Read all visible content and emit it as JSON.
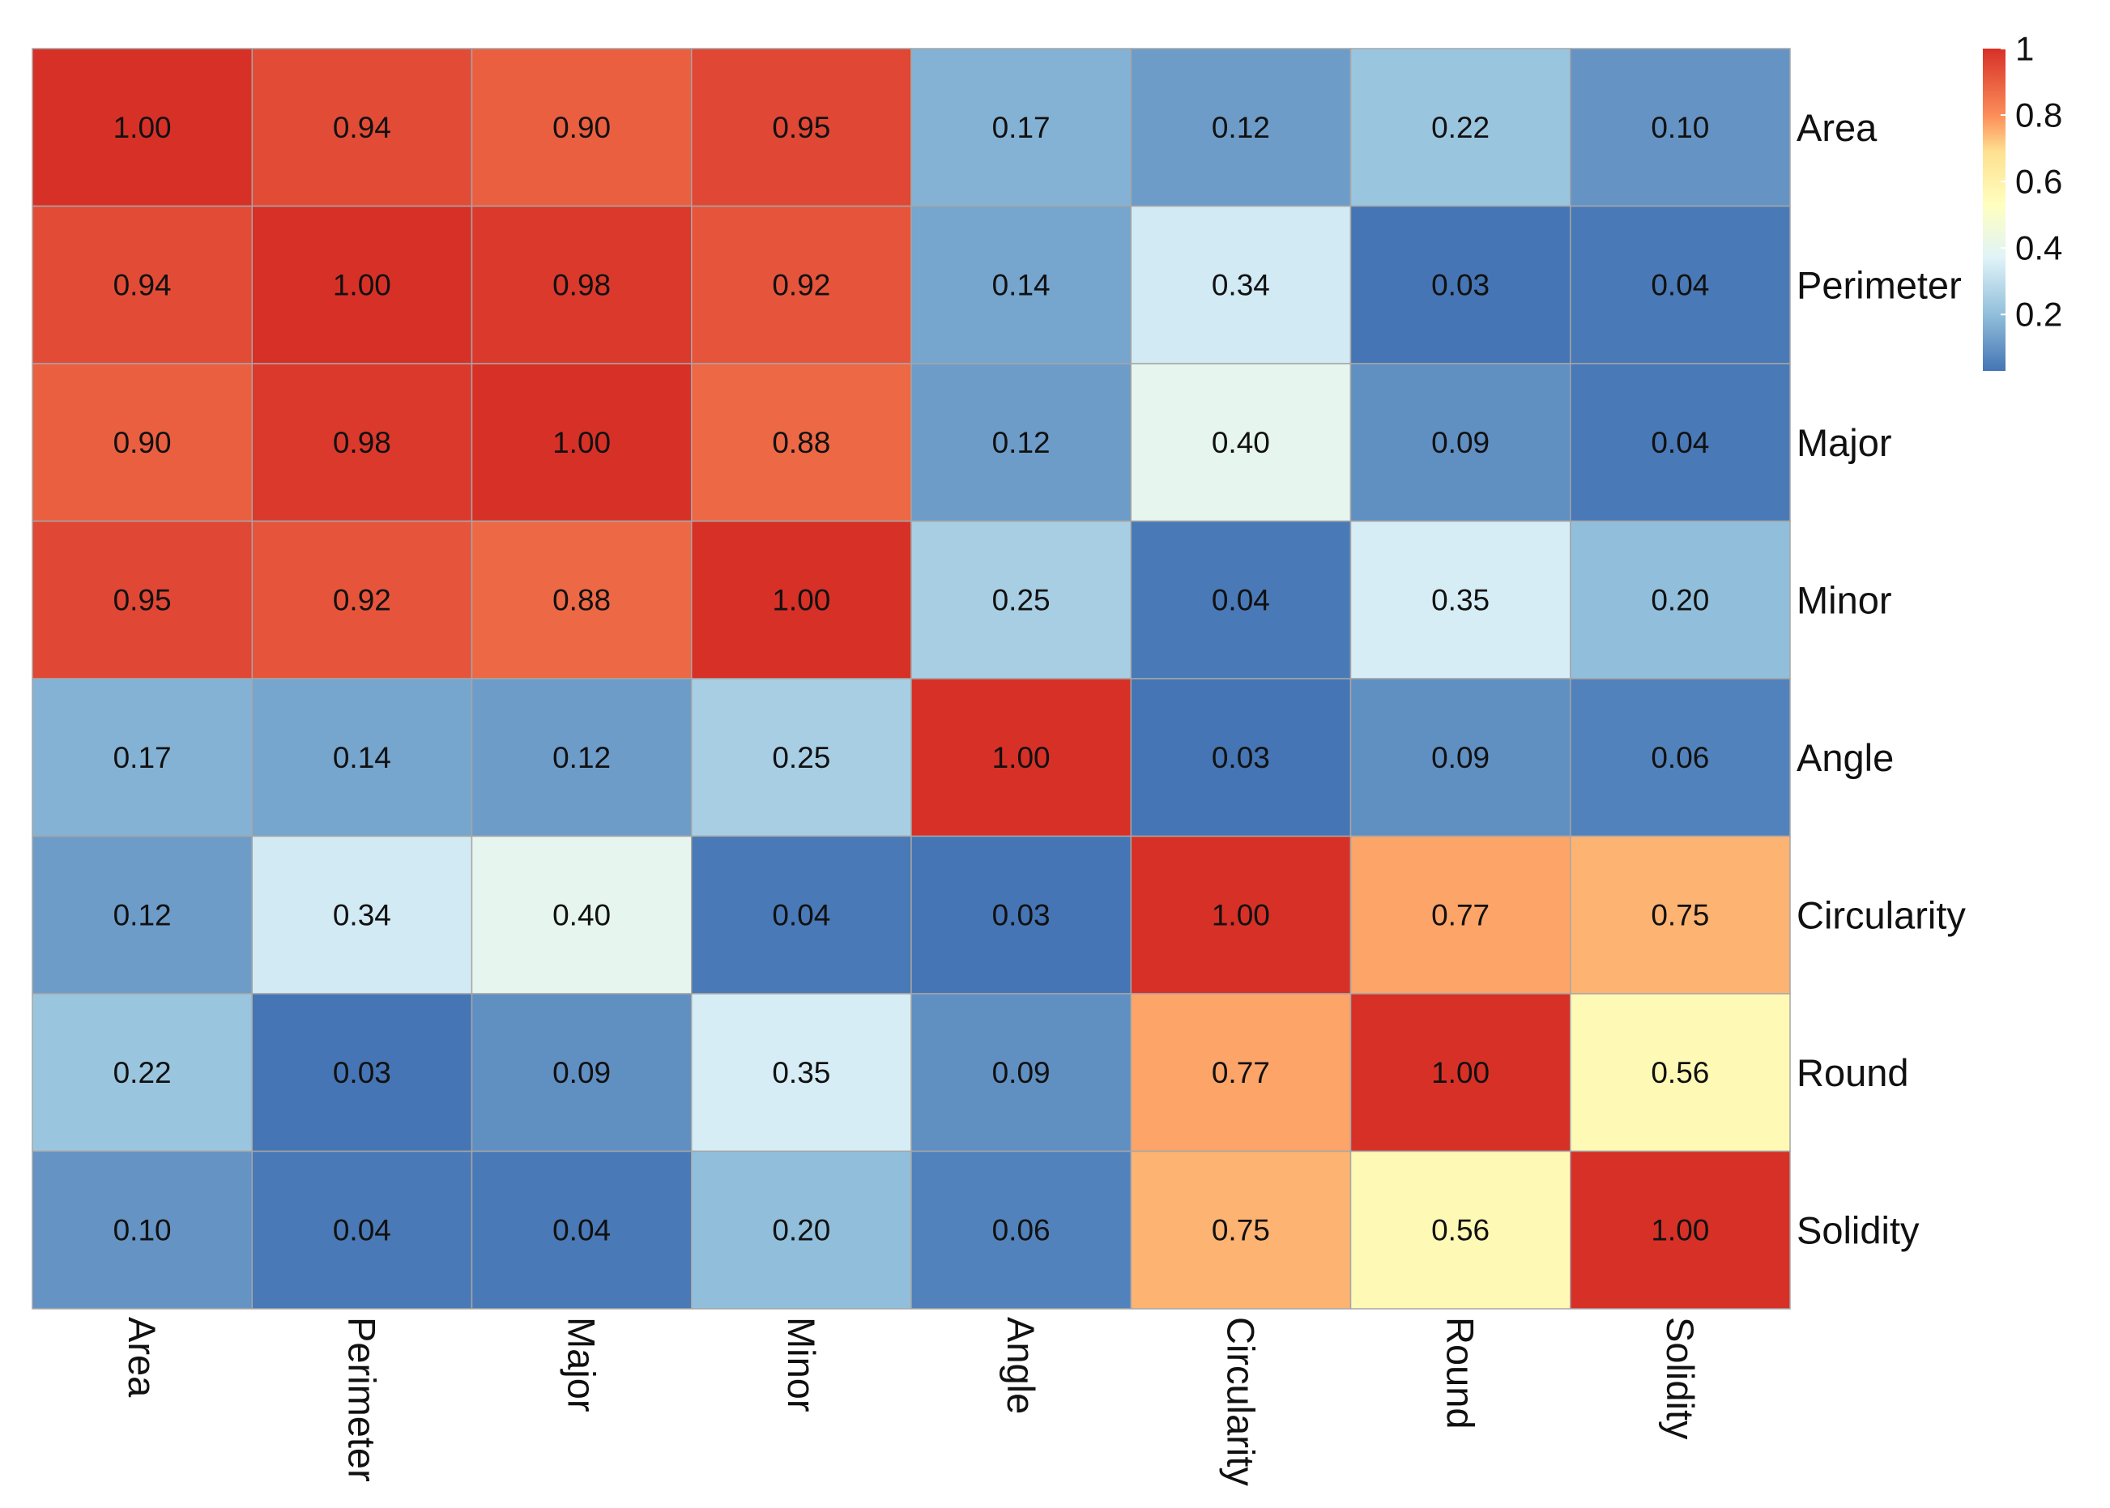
{
  "chart_data": {
    "type": "heatmap",
    "title": "",
    "row_labels": [
      "Area",
      "Perimeter",
      "Major",
      "Minor",
      "Angle",
      "Circularity",
      "Round",
      "Solidity"
    ],
    "col_labels": [
      "Area",
      "Perimeter",
      "Major",
      "Minor",
      "Angle",
      "Circularity",
      "Round",
      "Solidity"
    ],
    "values": [
      [
        1.0,
        0.94,
        0.9,
        0.95,
        0.17,
        0.12,
        0.22,
        0.1
      ],
      [
        0.94,
        1.0,
        0.98,
        0.92,
        0.14,
        0.34,
        0.03,
        0.04
      ],
      [
        0.9,
        0.98,
        1.0,
        0.88,
        0.12,
        0.4,
        0.09,
        0.04
      ],
      [
        0.95,
        0.92,
        0.88,
        1.0,
        0.25,
        0.04,
        0.35,
        0.2
      ],
      [
        0.17,
        0.14,
        0.12,
        0.25,
        1.0,
        0.03,
        0.09,
        0.06
      ],
      [
        0.12,
        0.34,
        0.4,
        0.04,
        0.03,
        1.0,
        0.77,
        0.75
      ],
      [
        0.22,
        0.03,
        0.09,
        0.35,
        0.09,
        0.77,
        1.0,
        0.56
      ],
      [
        0.1,
        0.04,
        0.04,
        0.2,
        0.06,
        0.75,
        0.56,
        1.0
      ]
    ],
    "cell_labels": [
      [
        "1.00",
        "0.94",
        "0.90",
        "0.95",
        "0.17",
        "0.12",
        "0.22",
        "0.10"
      ],
      [
        "0.94",
        "1.00",
        "0.98",
        "0.92",
        "0.14",
        "0.34",
        "0.03",
        "0.04"
      ],
      [
        "0.90",
        "0.98",
        "1.00",
        "0.88",
        "0.12",
        "0.40",
        "0.09",
        "0.04"
      ],
      [
        "0.95",
        "0.92",
        "0.88",
        "1.00",
        "0.25",
        "0.04",
        "0.35",
        "0.20"
      ],
      [
        "0.17",
        "0.14",
        "0.12",
        "0.25",
        "1.00",
        "0.03",
        "0.09",
        "0.06"
      ],
      [
        "0.12",
        "0.34",
        "0.40",
        "0.04",
        "0.03",
        "1.00",
        "0.77",
        "0.75"
      ],
      [
        "0.22",
        "0.03",
        "0.09",
        "0.35",
        "0.09",
        "0.77",
        "1.00",
        "0.56"
      ],
      [
        "0.10",
        "0.04",
        "0.04",
        "0.20",
        "0.06",
        "0.75",
        "0.56",
        "1.00"
      ]
    ],
    "legend": {
      "min": 0.03,
      "max": 1.0,
      "ticks": [
        1,
        0.8,
        0.6,
        0.4,
        0.2
      ],
      "tick_labels": [
        "1",
        "0.8",
        "0.6",
        "0.4",
        "0.2"
      ],
      "position": "top-right"
    },
    "colormap": {
      "name": "RdYlBu (reversed)",
      "stops": [
        {
          "value": 0.03,
          "color": "#4575b4"
        },
        {
          "value": 0.2,
          "color": "#91bfdb"
        },
        {
          "value": 0.37,
          "color": "#e0f3f8"
        },
        {
          "value": 0.53,
          "color": "#ffffbf"
        },
        {
          "value": 0.69,
          "color": "#fee090"
        },
        {
          "value": 0.8,
          "color": "#fc8d59"
        },
        {
          "value": 1.0,
          "color": "#d73027"
        }
      ]
    },
    "cell_border_color": "#a6a6a6"
  }
}
